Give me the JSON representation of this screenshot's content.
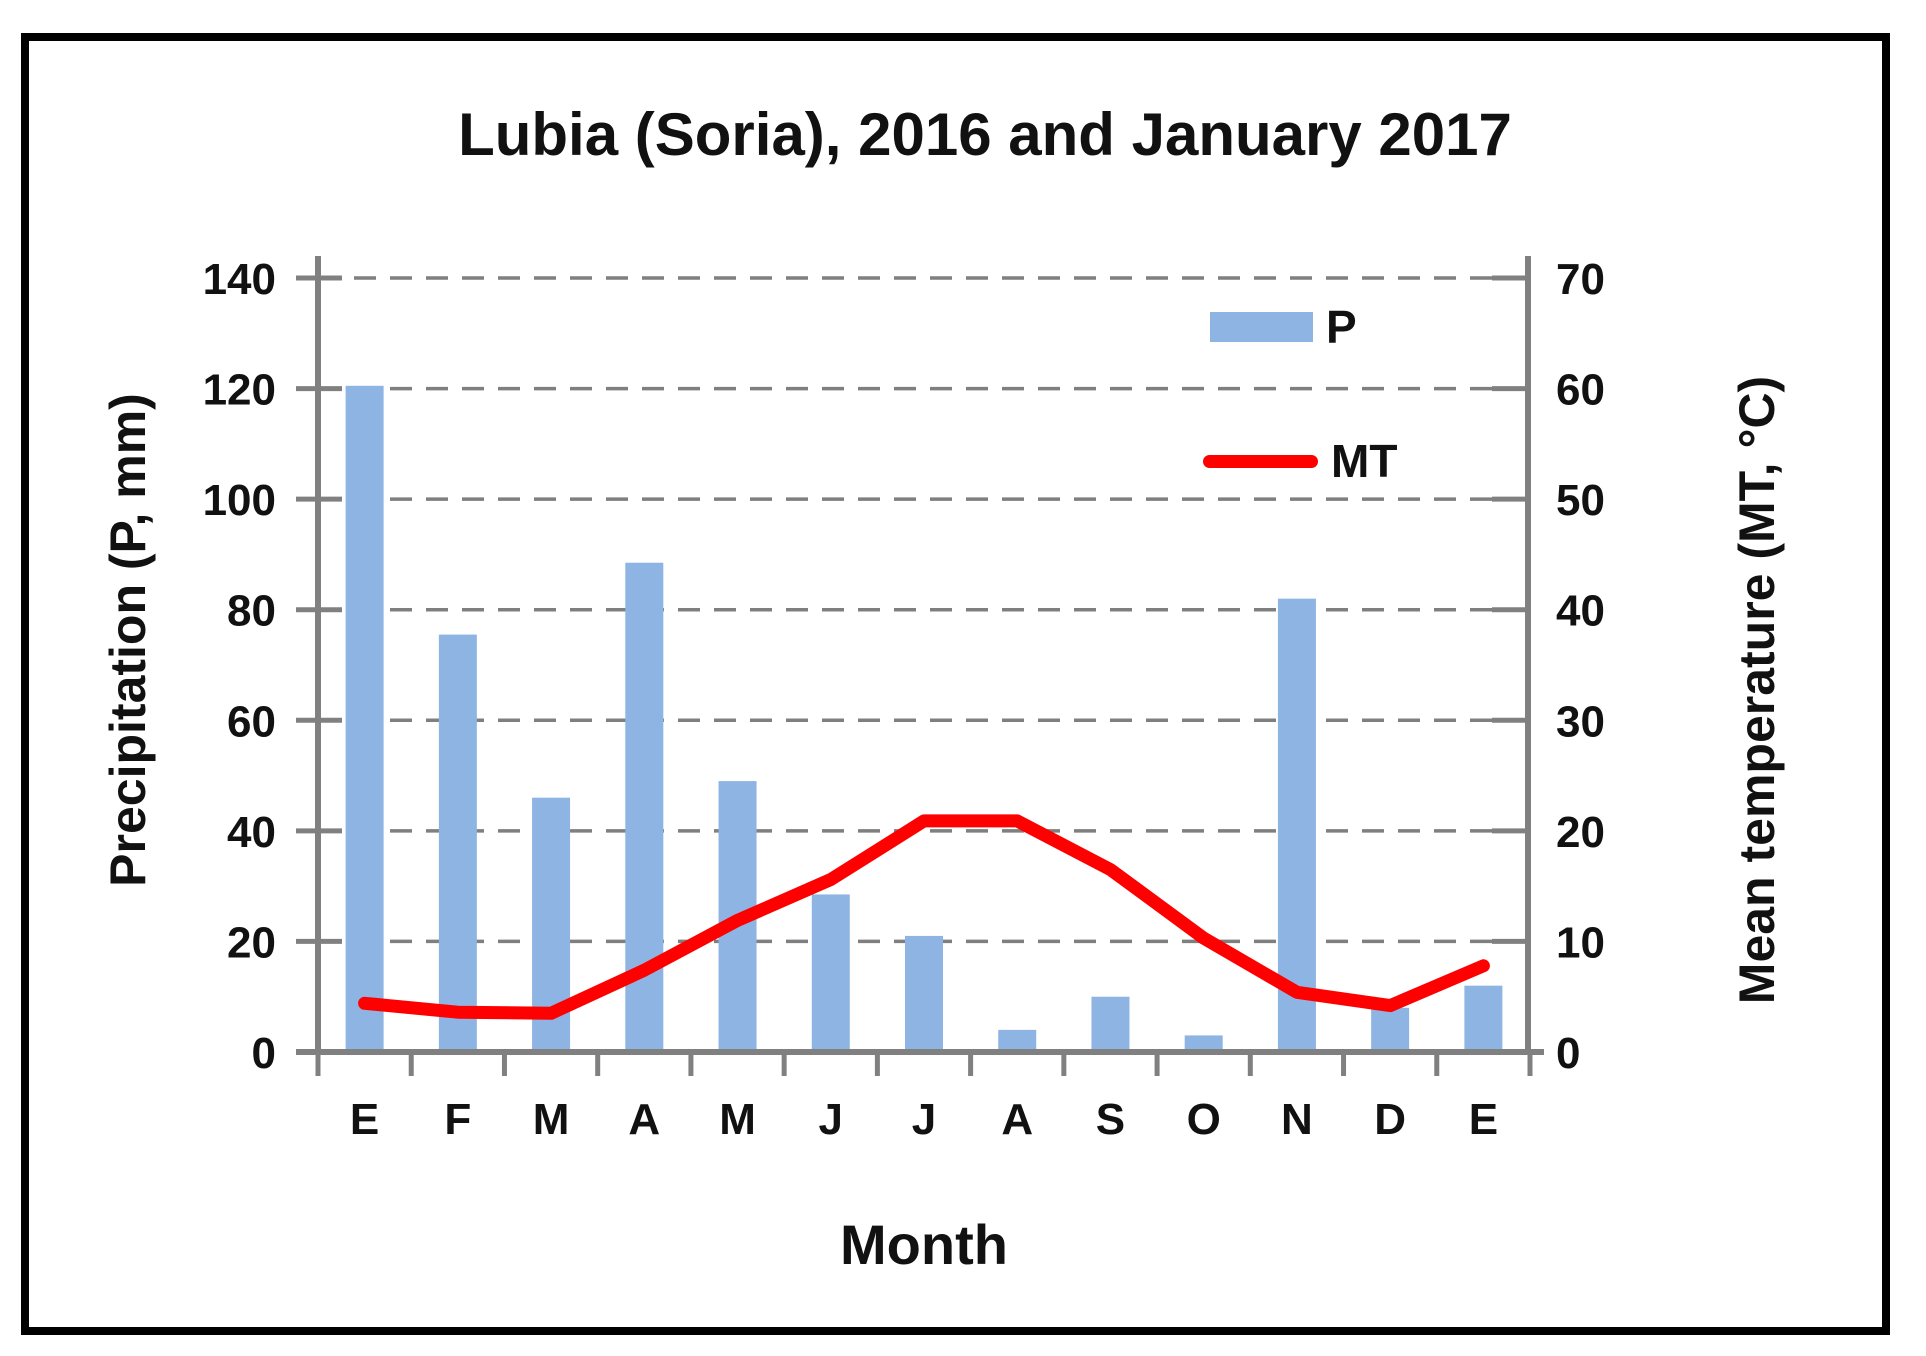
{
  "chart_data": {
    "type": "combo",
    "title": "Lubia (Soria), 2016 and January 2017",
    "xlabel": "Month",
    "ylabel_left": "Precipitation (P, mm)",
    "ylabel_right": "Mean temperature (MT, °C)",
    "categories": [
      "E",
      "F",
      "M",
      "A",
      "M",
      "J",
      "J",
      "A",
      "S",
      "O",
      "N",
      "D",
      "E"
    ],
    "series": [
      {
        "name": "P",
        "type": "bar",
        "axis": "left",
        "unit": "mm",
        "color": "#8DB4E2",
        "values": [
          120.5,
          75.5,
          46,
          88.5,
          49,
          28.5,
          21,
          4,
          10,
          3,
          82,
          8,
          12
        ]
      },
      {
        "name": "MT",
        "type": "line",
        "axis": "right",
        "unit": "°C",
        "color": "#FF0000",
        "values": [
          4.4,
          3.6,
          3.5,
          7.4,
          11.9,
          15.6,
          20.9,
          20.9,
          16.5,
          10.3,
          5.4,
          4.2,
          7.8
        ]
      }
    ],
    "ylim_left": [
      0,
      140
    ],
    "ylim_right": [
      0,
      70
    ],
    "yticks_left": [
      0,
      20,
      40,
      60,
      80,
      100,
      120,
      140
    ],
    "yticks_right": [
      0,
      10,
      20,
      30,
      40,
      50,
      60,
      70
    ],
    "grid": "horizontal-dashed",
    "grid_color": "#7F7F7F",
    "axis_color": "#808080",
    "text_color": "#111111",
    "legend_position": "inside-top-right"
  }
}
